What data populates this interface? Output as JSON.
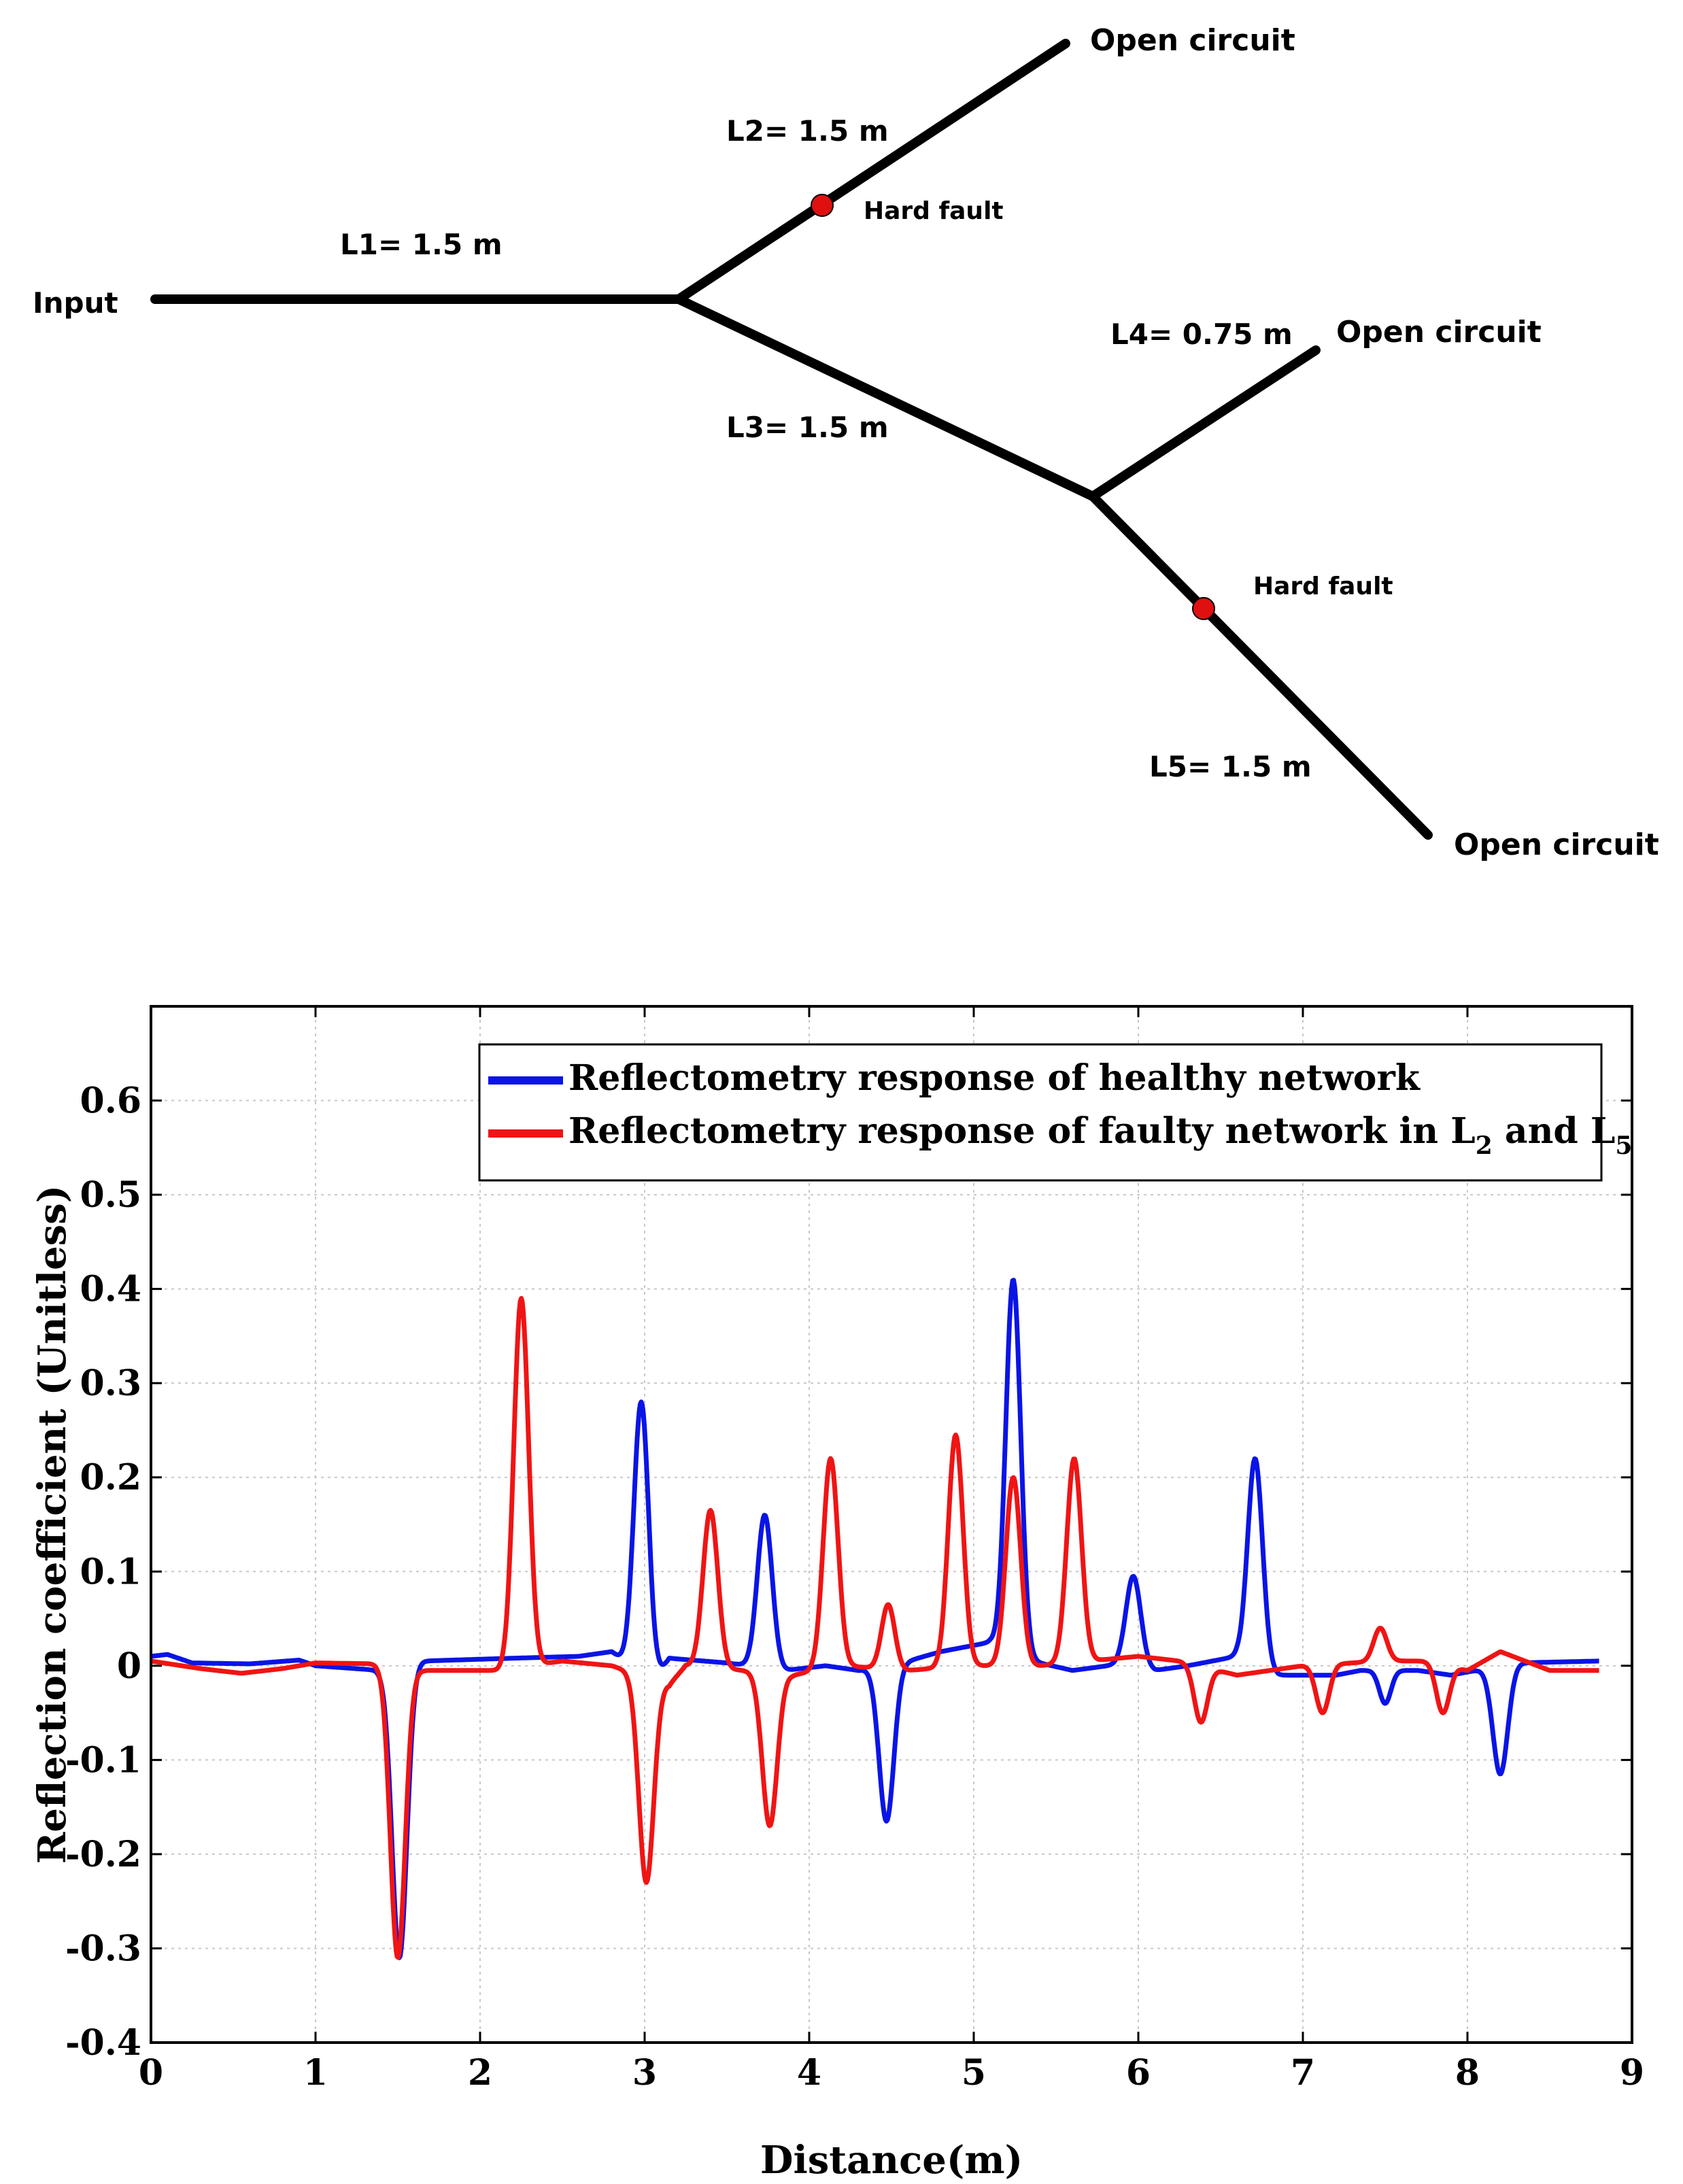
{
  "diagram": {
    "input_label": "Input",
    "segments": [
      {
        "id": "L1",
        "label": "L1= 1.5 m"
      },
      {
        "id": "L2",
        "label": "L2= 1.5 m"
      },
      {
        "id": "L3",
        "label": "L3= 1.5 m"
      },
      {
        "id": "L4",
        "label": "L4= 0.75 m"
      },
      {
        "id": "L5",
        "label": "L5= 1.5 m"
      }
    ],
    "terminations": [
      "Open circuit",
      "Open circuit",
      "Open circuit"
    ],
    "faults": [
      "Hard fault",
      "Hard fault"
    ],
    "fault_color": "#e01010"
  },
  "chart_data": {
    "type": "line",
    "title": "",
    "xlabel": "Distance(m)",
    "ylabel": "Reflection coefficient (Unitless)",
    "xlim": [
      0,
      9
    ],
    "ylim": [
      -0.4,
      0.7
    ],
    "xticks": [
      0,
      1,
      2,
      3,
      4,
      5,
      6,
      7,
      8,
      9
    ],
    "xtick_labels": [
      "0",
      "1",
      "2",
      "3",
      "4",
      "5",
      "6",
      "7",
      "8",
      "9"
    ],
    "yticks": [
      -0.4,
      -0.3,
      -0.2,
      -0.1,
      0,
      0.1,
      0.2,
      0.3,
      0.4,
      0.5,
      0.6
    ],
    "ytick_labels": [
      "-0.4",
      "-0.3",
      "-0.2",
      "-0.1",
      "0",
      "0.1",
      "0.2",
      "0.3",
      "0.4",
      "0.5",
      "0.6"
    ],
    "grid": true,
    "legend_position": "top-right",
    "x_end": 8.8,
    "series": [
      {
        "name": "Reflectometry response of healthy network",
        "legend_main": "Reflectometry response of healthy network",
        "legend_sub": "",
        "color": "#0a14e6",
        "baseline": [
          [
            0,
            0.01
          ],
          [
            0.1,
            0.012
          ],
          [
            0.25,
            0.003
          ],
          [
            0.6,
            0.002
          ],
          [
            0.9,
            0.006
          ],
          [
            1.0,
            0.0
          ],
          [
            1.4,
            -0.005
          ],
          [
            1.65,
            0.005
          ],
          [
            2.2,
            0.008
          ],
          [
            2.6,
            0.01
          ],
          [
            2.8,
            0.015
          ],
          [
            3.05,
            -0.02
          ],
          [
            3.15,
            0.008
          ],
          [
            3.5,
            0.003
          ],
          [
            3.85,
            -0.005
          ],
          [
            4.1,
            0.0
          ],
          [
            4.3,
            -0.005
          ],
          [
            4.6,
            0.005
          ],
          [
            4.8,
            0.015
          ],
          [
            5.1,
            0.025
          ],
          [
            5.35,
            0.005
          ],
          [
            5.6,
            -0.005
          ],
          [
            5.9,
            0.002
          ],
          [
            6.1,
            -0.005
          ],
          [
            6.3,
            0.0
          ],
          [
            6.6,
            0.01
          ],
          [
            6.85,
            -0.01
          ],
          [
            7.2,
            -0.01
          ],
          [
            7.35,
            -0.005
          ],
          [
            7.7,
            -0.005
          ],
          [
            7.9,
            -0.01
          ],
          [
            8.05,
            -0.005
          ],
          [
            8.3,
            0.003
          ],
          [
            8.8,
            0.005
          ]
        ],
        "peaks": [
          [
            1.51,
            -0.31,
            0.045
          ],
          [
            2.98,
            0.28,
            0.045
          ],
          [
            3.73,
            0.16,
            0.045
          ],
          [
            4.47,
            -0.165,
            0.045
          ],
          [
            5.24,
            0.41,
            0.045
          ],
          [
            5.97,
            0.095,
            0.045
          ],
          [
            6.71,
            0.22,
            0.045
          ],
          [
            7.5,
            -0.04,
            0.035
          ],
          [
            8.2,
            -0.115,
            0.045
          ]
        ]
      },
      {
        "name": "Reflectometry response of faulty network in L2 and L5",
        "legend_main": "Reflectometry response of faulty network in L",
        "legend_sub": "2",
        "legend_mid": " and L",
        "legend_sub2": "5",
        "color": "#f01414",
        "baseline": [
          [
            0,
            0.005
          ],
          [
            0.3,
            -0.003
          ],
          [
            0.55,
            -0.008
          ],
          [
            0.8,
            -0.003
          ],
          [
            1.0,
            0.003
          ],
          [
            1.4,
            0.002
          ],
          [
            1.65,
            -0.005
          ],
          [
            2.1,
            -0.005
          ],
          [
            2.5,
            0.005
          ],
          [
            2.8,
            0.0
          ],
          [
            3.15,
            -0.02
          ],
          [
            3.25,
            0.0
          ],
          [
            3.6,
            -0.005
          ],
          [
            3.9,
            -0.01
          ],
          [
            4.2,
            0.0
          ],
          [
            4.6,
            -0.005
          ],
          [
            4.95,
            0.0
          ],
          [
            5.4,
            0.0
          ],
          [
            5.7,
            0.005
          ],
          [
            6.0,
            0.01
          ],
          [
            6.25,
            0.005
          ],
          [
            6.6,
            -0.01
          ],
          [
            7.0,
            0.0
          ],
          [
            7.5,
            0.005
          ],
          [
            7.8,
            0.005
          ],
          [
            8.0,
            -0.005
          ],
          [
            8.2,
            0.015
          ],
          [
            8.5,
            -0.005
          ],
          [
            8.8,
            -0.005
          ]
        ],
        "peaks": [
          [
            1.5,
            -0.31,
            0.045
          ],
          [
            2.25,
            0.39,
            0.045
          ],
          [
            3.01,
            -0.23,
            0.045
          ],
          [
            3.4,
            0.165,
            0.045
          ],
          [
            3.76,
            -0.17,
            0.045
          ],
          [
            4.13,
            0.22,
            0.045
          ],
          [
            4.48,
            0.065,
            0.04
          ],
          [
            4.89,
            0.245,
            0.045
          ],
          [
            5.24,
            0.2,
            0.045
          ],
          [
            5.61,
            0.22,
            0.045
          ],
          [
            6.38,
            -0.06,
            0.04
          ],
          [
            7.12,
            -0.05,
            0.04
          ],
          [
            7.47,
            0.04,
            0.04
          ],
          [
            7.85,
            -0.05,
            0.04
          ]
        ]
      }
    ]
  }
}
